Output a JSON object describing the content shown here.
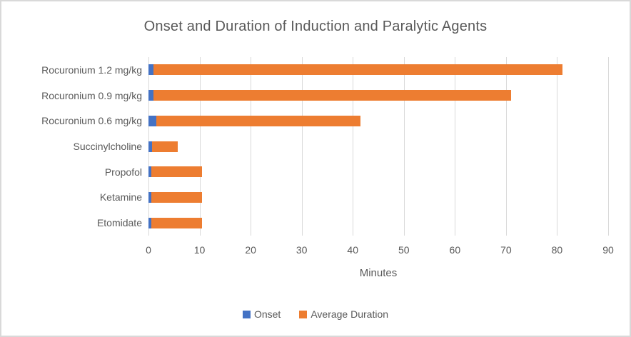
{
  "chart_data": {
    "type": "bar",
    "orientation": "horizontal",
    "stacked": true,
    "title": "Onset and Duration of Induction and Paralytic Agents",
    "xlabel": "Minutes",
    "categories": [
      "Rocuronium 1.2 mg/kg",
      "Rocuronium 0.9 mg/kg",
      "Rocuronium 0.6 mg/kg",
      "Succinylcholine",
      "Propofol",
      "Ketamine",
      "Etomidate"
    ],
    "series": [
      {
        "name": "Onset",
        "color": "#4472C4",
        "values": [
          1,
          1,
          1.5,
          0.75,
          0.5,
          0.5,
          0.5
        ]
      },
      {
        "name": "Average Duration",
        "color": "#ED7D31",
        "values": [
          80,
          70,
          40,
          5,
          10,
          10,
          10
        ]
      }
    ],
    "totals_minutes": [
      81,
      71,
      41.5,
      5.75,
      10.5,
      10.5,
      10.5
    ],
    "xlim": [
      0,
      90
    ],
    "xticks": [
      0,
      10,
      20,
      30,
      40,
      50,
      60,
      70,
      80,
      90
    ],
    "grid": "vertical-only",
    "legend_position": "bottom",
    "colors": {
      "axis_text": "#595959",
      "title_text": "#595959",
      "gridline": "#d9d9d9",
      "frame_border": "#d9d9d9",
      "background": "#ffffff"
    }
  }
}
